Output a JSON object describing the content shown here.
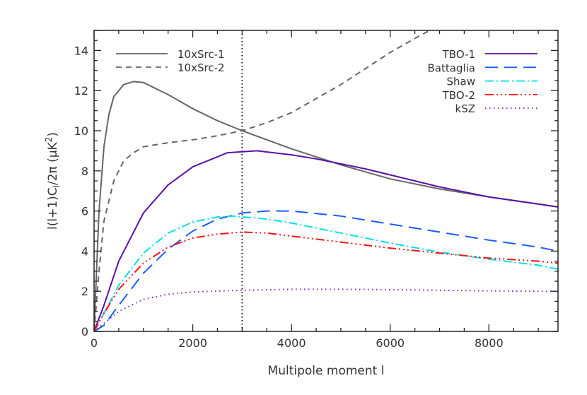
{
  "chart_data": {
    "type": "line",
    "title": "",
    "xlabel": "Multipole moment l",
    "ylabel": "l(l+1)C",
    "ylabel_sub": "l",
    "ylabel_rest": "/2π (μK",
    "ylabel_sup": "2",
    "ylabel_end": ")",
    "xlim": [
      0,
      9400
    ],
    "ylim": [
      0,
      15
    ],
    "xticks": [
      0,
      2000,
      4000,
      6000,
      8000
    ],
    "xtick_labels": [
      "0",
      "2000",
      "4000",
      "6000",
      "8000"
    ],
    "yticks": [
      0,
      2,
      4,
      6,
      8,
      10,
      12,
      14
    ],
    "ytick_labels": [
      "0",
      "2",
      "4",
      "6",
      "8",
      "10",
      "12",
      "14"
    ],
    "vline": 3000,
    "grid": false,
    "legend_left": "top-left",
    "legend_right": "top-right",
    "series": [
      {
        "name": "10xSrc-1",
        "color": "#666666",
        "dash": "solid",
        "legend": "left",
        "points": [
          [
            0,
            0
          ],
          [
            50,
            3
          ],
          [
            100,
            6
          ],
          [
            200,
            9.2
          ],
          [
            300,
            10.8
          ],
          [
            400,
            11.7
          ],
          [
            600,
            12.3
          ],
          [
            800,
            12.45
          ],
          [
            1000,
            12.4
          ],
          [
            1500,
            11.8
          ],
          [
            2000,
            11.1
          ],
          [
            2500,
            10.5
          ],
          [
            3000,
            10.0
          ],
          [
            4000,
            9.1
          ],
          [
            5000,
            8.3
          ],
          [
            6000,
            7.6
          ],
          [
            7000,
            7.1
          ],
          [
            8000,
            6.7
          ],
          [
            9000,
            6.35
          ],
          [
            9400,
            6.2
          ]
        ]
      },
      {
        "name": "10xSrc-2",
        "color": "#666666",
        "dash": "dashed",
        "legend": "left",
        "points": [
          [
            0,
            0
          ],
          [
            100,
            3
          ],
          [
            200,
            5.5
          ],
          [
            400,
            7.5
          ],
          [
            600,
            8.5
          ],
          [
            800,
            8.9
          ],
          [
            1000,
            9.2
          ],
          [
            1500,
            9.4
          ],
          [
            2000,
            9.55
          ],
          [
            2500,
            9.75
          ],
          [
            3000,
            10.0
          ],
          [
            3500,
            10.4
          ],
          [
            4000,
            10.9
          ],
          [
            4500,
            11.6
          ],
          [
            5000,
            12.3
          ],
          [
            5500,
            13.1
          ],
          [
            6000,
            13.9
          ],
          [
            6500,
            14.6
          ],
          [
            6800,
            15
          ]
        ]
      },
      {
        "name": "TBO-1",
        "color": "#5b0fa8",
        "dash": "solid",
        "legend": "right",
        "points": [
          [
            0,
            0
          ],
          [
            200,
            1.3
          ],
          [
            500,
            3.5
          ],
          [
            1000,
            5.9
          ],
          [
            1500,
            7.3
          ],
          [
            2000,
            8.2
          ],
          [
            2500,
            8.7
          ],
          [
            2700,
            8.9
          ],
          [
            3000,
            8.95
          ],
          [
            3300,
            9.0
          ],
          [
            4000,
            8.8
          ],
          [
            4500,
            8.6
          ],
          [
            5000,
            8.35
          ],
          [
            5500,
            8.1
          ],
          [
            6000,
            7.8
          ],
          [
            7000,
            7.2
          ],
          [
            8000,
            6.7
          ],
          [
            9000,
            6.35
          ],
          [
            9400,
            6.2
          ]
        ]
      },
      {
        "name": "Battaglia",
        "color": "#1a5cff",
        "dash": "longdash",
        "legend": "right",
        "points": [
          [
            0,
            0
          ],
          [
            200,
            0.3
          ],
          [
            500,
            1.3
          ],
          [
            1000,
            2.9
          ],
          [
            1500,
            4.1
          ],
          [
            2000,
            5.0
          ],
          [
            2500,
            5.6
          ],
          [
            3000,
            5.9
          ],
          [
            3500,
            6.0
          ],
          [
            4000,
            6.0
          ],
          [
            5000,
            5.75
          ],
          [
            6000,
            5.35
          ],
          [
            7000,
            4.95
          ],
          [
            8000,
            4.55
          ],
          [
            9000,
            4.2
          ],
          [
            9400,
            4.0
          ]
        ]
      },
      {
        "name": "Shaw",
        "color": "#00e0e8",
        "dash": "dashdot",
        "legend": "right",
        "points": [
          [
            0,
            0
          ],
          [
            200,
            0.9
          ],
          [
            500,
            2.3
          ],
          [
            1000,
            3.9
          ],
          [
            1500,
            4.9
          ],
          [
            2000,
            5.45
          ],
          [
            2500,
            5.7
          ],
          [
            2800,
            5.75
          ],
          [
            3500,
            5.6
          ],
          [
            4000,
            5.4
          ],
          [
            5000,
            4.9
          ],
          [
            6000,
            4.4
          ],
          [
            7000,
            3.95
          ],
          [
            8000,
            3.6
          ],
          [
            9000,
            3.3
          ],
          [
            9400,
            3.1
          ]
        ]
      },
      {
        "name": "TBO-2",
        "color": "#ff1010",
        "dash": "dashdotdotdot",
        "legend": "right",
        "points": [
          [
            0,
            0
          ],
          [
            200,
            0.9
          ],
          [
            500,
            2.1
          ],
          [
            1000,
            3.4
          ],
          [
            1500,
            4.2
          ],
          [
            2000,
            4.65
          ],
          [
            2500,
            4.85
          ],
          [
            3000,
            4.95
          ],
          [
            3500,
            4.9
          ],
          [
            4000,
            4.75
          ],
          [
            5000,
            4.45
          ],
          [
            6000,
            4.15
          ],
          [
            7000,
            3.9
          ],
          [
            8000,
            3.65
          ],
          [
            9000,
            3.5
          ],
          [
            9400,
            3.4
          ]
        ]
      },
      {
        "name": "kSZ",
        "color": "#7a22c8",
        "dash": "dotted",
        "legend": "right",
        "points": [
          [
            0,
            0
          ],
          [
            200,
            0.4
          ],
          [
            500,
            1.0
          ],
          [
            1000,
            1.6
          ],
          [
            1500,
            1.85
          ],
          [
            2000,
            1.97
          ],
          [
            3000,
            2.05
          ],
          [
            4000,
            2.1
          ],
          [
            5000,
            2.1
          ],
          [
            6000,
            2.08
          ],
          [
            7000,
            2.05
          ],
          [
            8000,
            2.02
          ],
          [
            9000,
            2.0
          ],
          [
            9400,
            2.0
          ]
        ]
      }
    ]
  }
}
